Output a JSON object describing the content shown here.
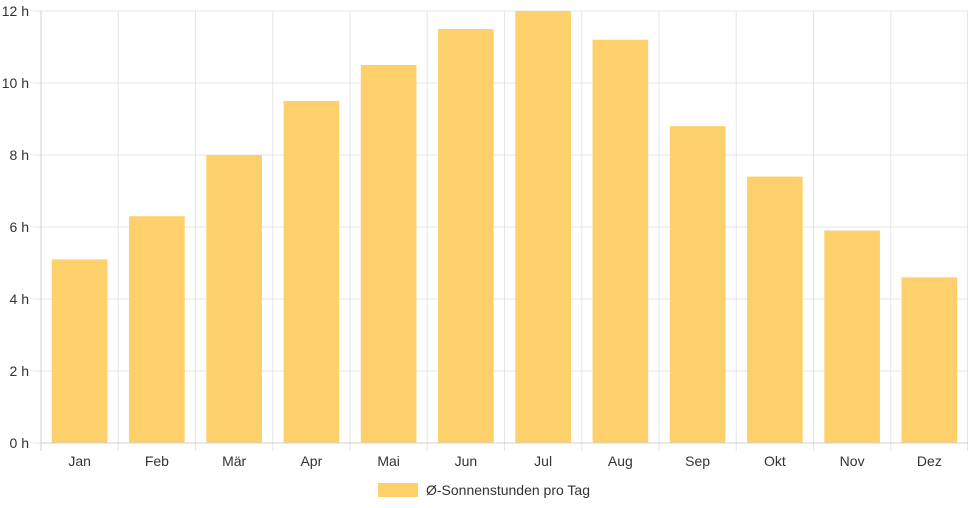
{
  "chart_data": {
    "type": "bar",
    "categories": [
      "Jan",
      "Feb",
      "Mär",
      "Apr",
      "Mai",
      "Jun",
      "Jul",
      "Aug",
      "Sep",
      "Okt",
      "Nov",
      "Dez"
    ],
    "series": [
      {
        "name": "Ø-Sonnenstunden pro Tag",
        "values": [
          5.1,
          6.3,
          8.0,
          9.5,
          10.5,
          11.5,
          12.0,
          11.2,
          8.8,
          7.4,
          5.9,
          4.6
        ]
      }
    ],
    "yticks": [
      "0 h",
      "2 h",
      "4 h",
      "6 h",
      "8 h",
      "10 h",
      "12 h"
    ],
    "ylim": [
      0,
      12
    ],
    "grid": true,
    "legend_position": "bottom",
    "colors": {
      "bar": "#FDD06B",
      "grid": "#e5e5e5",
      "text": "#333333"
    }
  }
}
